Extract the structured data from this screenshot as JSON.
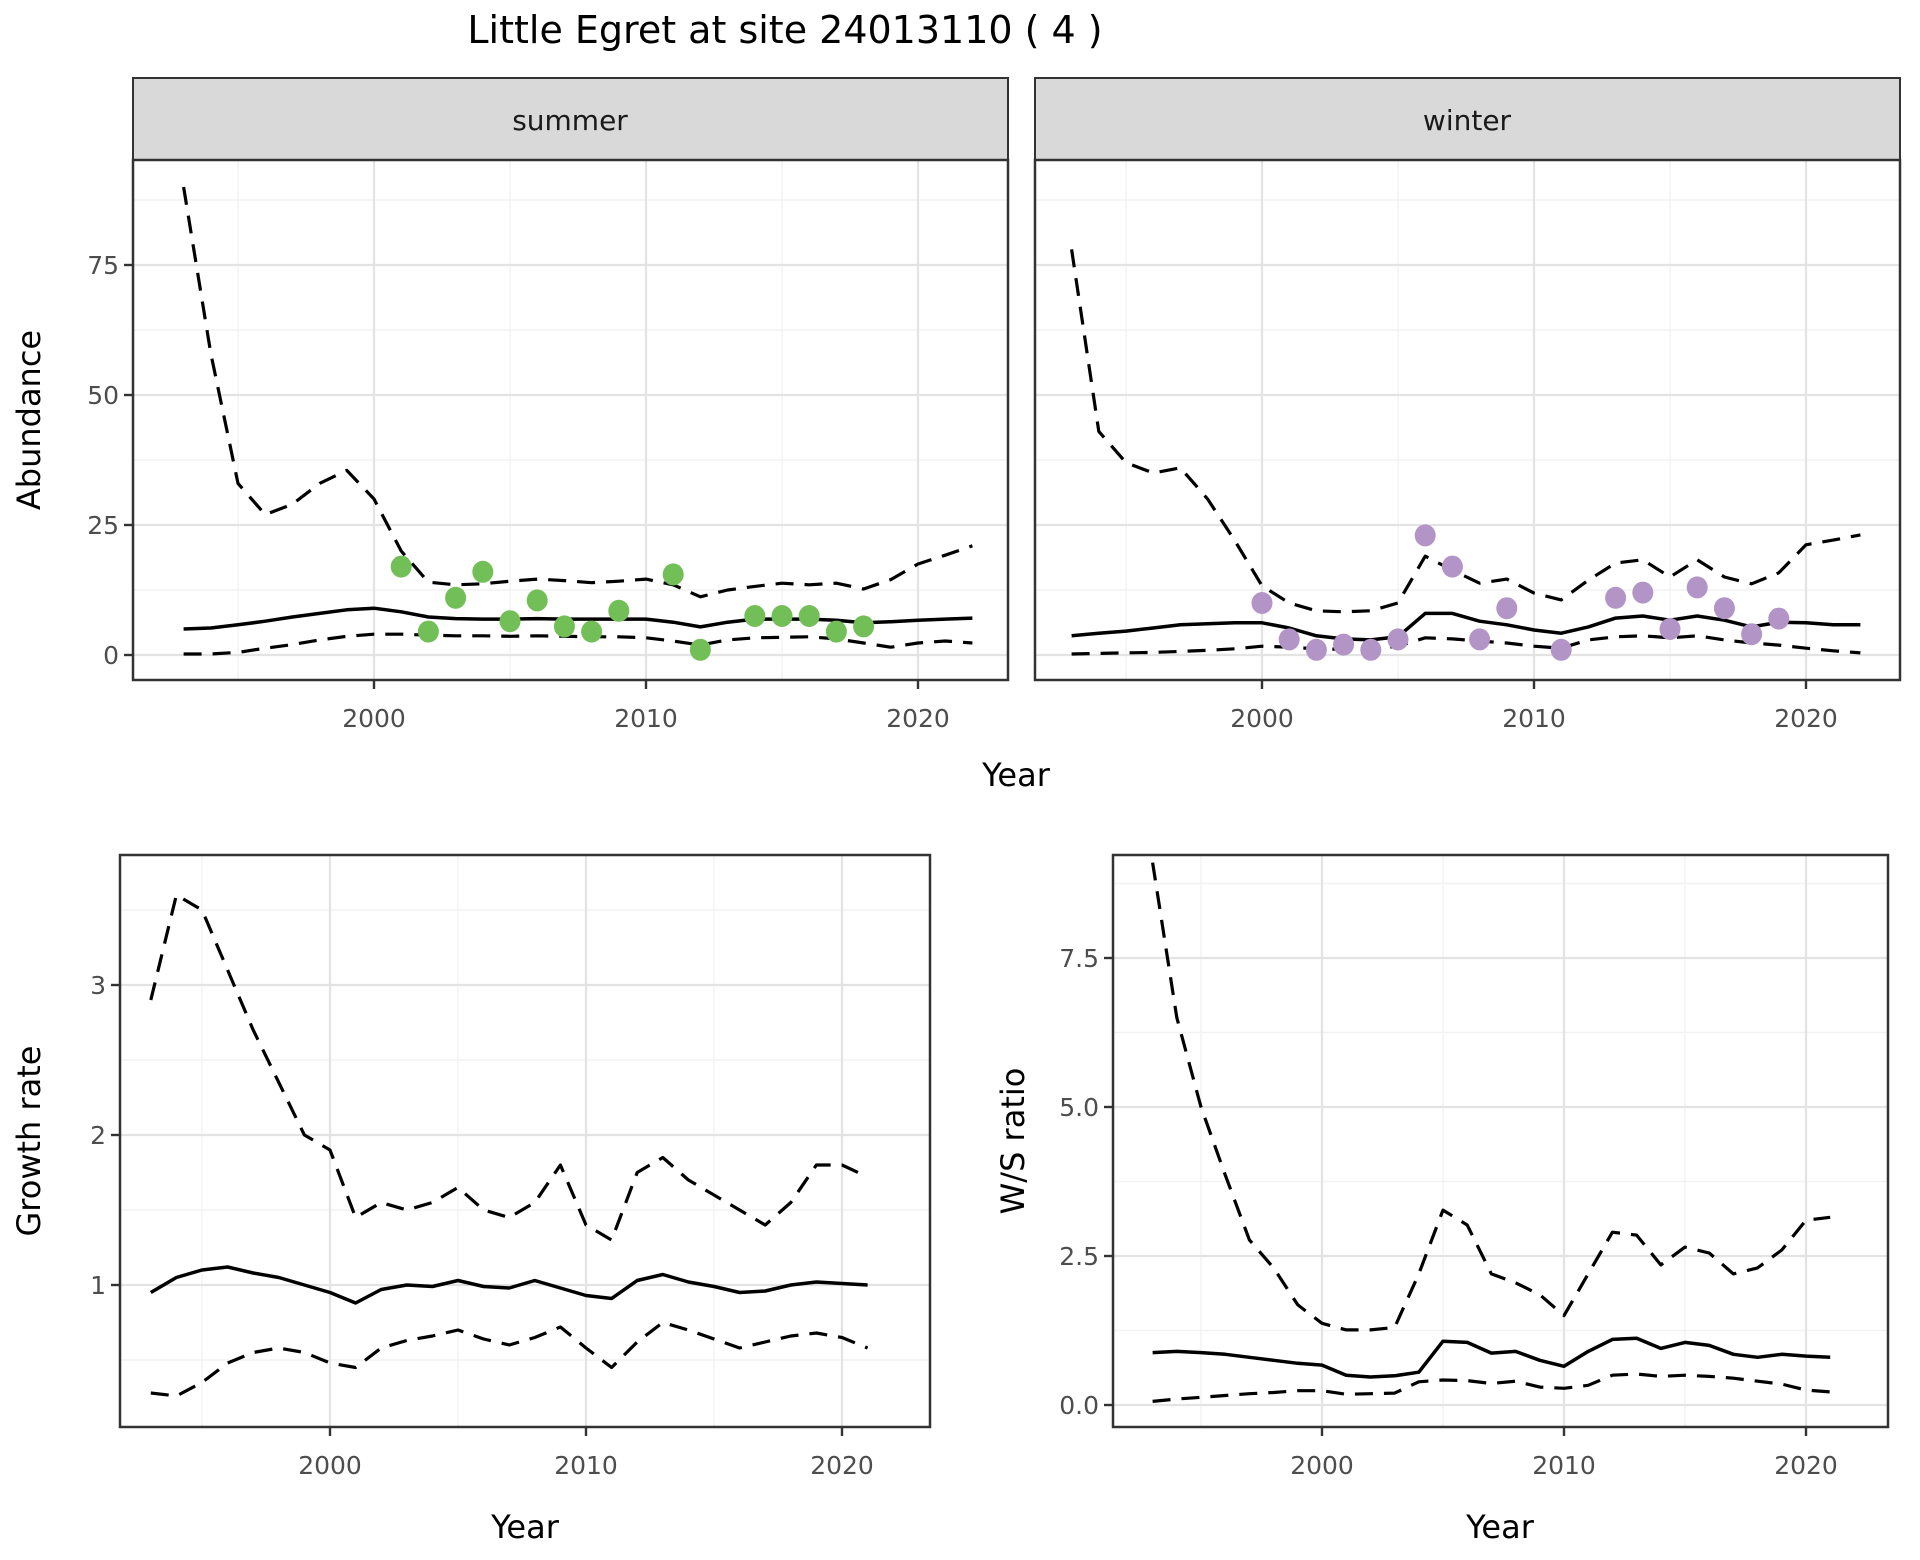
{
  "title": "Little Egret at site 24013110 ( 4 )",
  "labels": {
    "abundance": "Abundance",
    "year": "Year",
    "growth_rate": "Growth rate",
    "ws_ratio": "W/S ratio"
  },
  "colors": {
    "summer_points": "#73BF57",
    "winter_points": "#B294C7",
    "line": "#000000",
    "strip_fill": "#D9D9D9",
    "panel_border": "#333333",
    "tick_text": "#4D4D4D"
  },
  "chart_data": [
    {
      "id": "abundance-summer",
      "type": "line",
      "facet_label": "summer",
      "xlabel": "Year",
      "ylabel": "Abundance",
      "x_ticks": {
        "values": [
          2000,
          2010,
          2020
        ],
        "labels": [
          "2000",
          "2010",
          "2020"
        ]
      },
      "y_ticks": {
        "values": [
          0,
          25,
          50,
          75
        ],
        "labels": [
          "0",
          "25",
          "50",
          "75"
        ]
      },
      "xlim": [
        1991.1,
        2023.3
      ],
      "ylim": [
        -4.8,
        95.2
      ],
      "grid": true,
      "legend": "none",
      "years": [
        1993,
        1994,
        1995,
        1996,
        1997,
        1998,
        1999,
        2000,
        2001,
        2002,
        2003,
        2004,
        2005,
        2006,
        2007,
        2008,
        2009,
        2010,
        2011,
        2012,
        2013,
        2014,
        2015,
        2016,
        2017,
        2018,
        2019,
        2020,
        2021,
        2022
      ],
      "series": [
        {
          "name": "mean",
          "style": "solid",
          "values": [
            5.0,
            5.2,
            5.8,
            6.5,
            7.3,
            8.0,
            8.7,
            9.0,
            8.3,
            7.3,
            7.0,
            6.9,
            6.9,
            7.0,
            6.9,
            6.9,
            6.9,
            6.9,
            6.3,
            5.4,
            6.3,
            6.9,
            6.9,
            6.9,
            6.7,
            6.2,
            6.4,
            6.7,
            6.9,
            7.1
          ]
        },
        {
          "name": "upper_ci",
          "style": "dashed",
          "values": [
            90,
            58,
            33,
            27,
            29,
            33,
            35.5,
            30,
            20,
            14,
            13.5,
            13.7,
            14.2,
            14.6,
            14.3,
            13.9,
            14.2,
            14.6,
            13.5,
            11.2,
            12.5,
            13.2,
            13.8,
            13.5,
            13.8,
            12.7,
            14.5,
            17.5,
            19.2,
            21
          ]
        },
        {
          "name": "lower_ci",
          "style": "dashed",
          "values": [
            0.2,
            0.2,
            0.5,
            1.3,
            2.0,
            2.9,
            3.6,
            4.0,
            4.0,
            3.8,
            3.7,
            3.7,
            3.6,
            3.7,
            3.6,
            3.5,
            3.5,
            3.3,
            2.7,
            1.9,
            2.9,
            3.3,
            3.4,
            3.5,
            3.1,
            2.3,
            1.5,
            2.3,
            2.7,
            2.3
          ]
        }
      ],
      "observations": {
        "name": "summer observed counts",
        "color": "#73BF57",
        "points": [
          [
            2001,
            17
          ],
          [
            2002,
            4.5
          ],
          [
            2003,
            11
          ],
          [
            2004,
            16
          ],
          [
            2005,
            6.5
          ],
          [
            2006,
            10.5
          ],
          [
            2007,
            5.5
          ],
          [
            2008,
            4.5
          ],
          [
            2009,
            8.5
          ],
          [
            2011,
            15.5
          ],
          [
            2012,
            1
          ],
          [
            2014,
            7.5
          ],
          [
            2015,
            7.5
          ],
          [
            2016,
            7.5
          ],
          [
            2017,
            4.5
          ],
          [
            2018,
            5.5
          ]
        ]
      }
    },
    {
      "id": "abundance-winter",
      "type": "line",
      "facet_label": "winter",
      "xlabel": "Year",
      "ylabel": "Abundance",
      "x_ticks": {
        "values": [
          2000,
          2010,
          2020
        ],
        "labels": [
          "2000",
          "2010",
          "2020"
        ]
      },
      "y_ticks": {
        "values": [
          0,
          25,
          50,
          75
        ],
        "labels": [
          "0",
          "25",
          "50",
          "75"
        ]
      },
      "xlim": [
        1991.65,
        2023.5
      ],
      "ylim": [
        -4.8,
        95.2
      ],
      "grid": true,
      "legend": "none",
      "years": [
        1993,
        1994,
        1995,
        1996,
        1997,
        1998,
        1999,
        2000,
        2001,
        2002,
        2003,
        2004,
        2005,
        2006,
        2007,
        2008,
        2009,
        2010,
        2011,
        2012,
        2013,
        2014,
        2015,
        2016,
        2017,
        2018,
        2019,
        2020,
        2021,
        2022
      ],
      "series": [
        {
          "name": "mean",
          "style": "solid",
          "values": [
            3.7,
            4.2,
            4.6,
            5.2,
            5.8,
            6.0,
            6.2,
            6.2,
            5.2,
            3.7,
            3.1,
            2.9,
            3.5,
            8.0,
            8.0,
            6.5,
            5.8,
            4.8,
            4.2,
            5.4,
            7.1,
            7.5,
            6.7,
            7.5,
            6.7,
            5.4,
            6.3,
            6.2,
            5.8,
            5.8
          ]
        },
        {
          "name": "upper_ci",
          "style": "dashed",
          "values": [
            78,
            43,
            37,
            35,
            36,
            30,
            22,
            13.3,
            10,
            8.5,
            8.3,
            8.5,
            10,
            19,
            16.3,
            13.8,
            14.6,
            11.9,
            10.6,
            14.4,
            17.7,
            18.3,
            15,
            18.3,
            15,
            13.7,
            15.8,
            21.2,
            22.1,
            23.1
          ]
        },
        {
          "name": "lower_ci",
          "style": "dashed",
          "values": [
            0.2,
            0.3,
            0.4,
            0.5,
            0.7,
            0.9,
            1.2,
            1.7,
            1.5,
            1.2,
            1.1,
            1.1,
            1.7,
            3.3,
            3.1,
            2.7,
            2.3,
            1.7,
            1.3,
            2.9,
            3.5,
            3.7,
            3.3,
            3.7,
            2.9,
            2.3,
            1.9,
            1.3,
            0.8,
            0.4
          ]
        }
      ],
      "observations": {
        "name": "winter observed counts",
        "color": "#B294C7",
        "points": [
          [
            2000,
            10
          ],
          [
            2001,
            3
          ],
          [
            2002,
            1
          ],
          [
            2003,
            2
          ],
          [
            2004,
            1
          ],
          [
            2005,
            3
          ],
          [
            2006,
            23
          ],
          [
            2007,
            17
          ],
          [
            2008,
            3
          ],
          [
            2009,
            9
          ],
          [
            2011,
            1
          ],
          [
            2013,
            11
          ],
          [
            2014,
            12
          ],
          [
            2015,
            5
          ],
          [
            2016,
            13
          ],
          [
            2017,
            9
          ],
          [
            2018,
            4
          ],
          [
            2019,
            7
          ]
        ]
      }
    },
    {
      "id": "growth-rate",
      "type": "line",
      "facet_label": null,
      "xlabel": "Year",
      "ylabel": "Growth rate",
      "x_ticks": {
        "values": [
          2000,
          2010,
          2020
        ],
        "labels": [
          "2000",
          "2010",
          "2020"
        ]
      },
      "y_ticks": {
        "values": [
          1,
          2,
          3
        ],
        "labels": [
          "1",
          "2",
          "3"
        ]
      },
      "xlim": [
        1991.8,
        2023.4
      ],
      "ylim": [
        0.05,
        3.87
      ],
      "grid": true,
      "legend": "none",
      "years": [
        1993,
        1994,
        1995,
        1996,
        1997,
        1998,
        1999,
        2000,
        2001,
        2002,
        2003,
        2004,
        2005,
        2006,
        2007,
        2008,
        2009,
        2010,
        2011,
        2012,
        2013,
        2014,
        2015,
        2016,
        2017,
        2018,
        2019,
        2020,
        2021
      ],
      "series": [
        {
          "name": "mean",
          "style": "solid",
          "values": [
            0.95,
            1.05,
            1.1,
            1.12,
            1.08,
            1.05,
            1.0,
            0.95,
            0.88,
            0.97,
            1.0,
            0.99,
            1.03,
            0.99,
            0.98,
            1.03,
            0.98,
            0.93,
            0.91,
            1.03,
            1.07,
            1.02,
            0.99,
            0.95,
            0.96,
            1.0,
            1.02,
            1.01,
            1.0
          ]
        },
        {
          "name": "upper_ci",
          "style": "dashed",
          "values": [
            2.9,
            3.6,
            3.5,
            3.1,
            2.7,
            2.35,
            2.0,
            1.9,
            1.45,
            1.55,
            1.5,
            1.55,
            1.65,
            1.5,
            1.45,
            1.55,
            1.8,
            1.4,
            1.3,
            1.75,
            1.85,
            1.7,
            1.6,
            1.5,
            1.4,
            1.55,
            1.8,
            1.8,
            1.72
          ]
        },
        {
          "name": "lower_ci",
          "style": "dashed",
          "values": [
            0.28,
            0.26,
            0.35,
            0.48,
            0.55,
            0.58,
            0.55,
            0.48,
            0.45,
            0.58,
            0.63,
            0.66,
            0.7,
            0.64,
            0.6,
            0.65,
            0.72,
            0.58,
            0.45,
            0.62,
            0.75,
            0.7,
            0.64,
            0.58,
            0.62,
            0.66,
            0.68,
            0.65,
            0.58
          ]
        }
      ],
      "observations": null
    },
    {
      "id": "ws-ratio",
      "type": "line",
      "facet_label": null,
      "xlabel": "Year",
      "ylabel": "W/S ratio",
      "x_ticks": {
        "values": [
          2000,
          2010,
          2020
        ],
        "labels": [
          "2000",
          "2010",
          "2020"
        ]
      },
      "y_ticks": {
        "values": [
          0,
          2.5,
          5,
          7.5
        ],
        "labels": [
          "0.0",
          "2.5",
          "5.0",
          "7.5"
        ]
      },
      "xlim": [
        1991.4,
        2023.4
      ],
      "ylim": [
        -0.37,
        9.23
      ],
      "grid": true,
      "legend": "none",
      "years": [
        1993,
        1994,
        1995,
        1996,
        1997,
        1998,
        1999,
        2000,
        2001,
        2002,
        2003,
        2004,
        2005,
        2006,
        2007,
        2008,
        2009,
        2010,
        2011,
        2012,
        2013,
        2014,
        2015,
        2016,
        2017,
        2018,
        2019,
        2020,
        2021
      ],
      "series": [
        {
          "name": "mean",
          "style": "solid",
          "values": [
            0.88,
            0.9,
            0.88,
            0.85,
            0.8,
            0.75,
            0.7,
            0.67,
            0.5,
            0.47,
            0.49,
            0.55,
            1.07,
            1.05,
            0.87,
            0.9,
            0.75,
            0.65,
            0.9,
            1.1,
            1.12,
            0.95,
            1.05,
            1.0,
            0.85,
            0.8,
            0.85,
            0.82,
            0.8
          ]
        },
        {
          "name": "upper_ci",
          "style": "dashed",
          "values": [
            9.1,
            6.5,
            5.0,
            3.86,
            2.77,
            2.3,
            1.68,
            1.37,
            1.26,
            1.26,
            1.3,
            2.2,
            3.27,
            3.02,
            2.2,
            2.05,
            1.85,
            1.5,
            2.2,
            2.9,
            2.85,
            2.35,
            2.65,
            2.55,
            2.2,
            2.3,
            2.6,
            3.1,
            3.15
          ]
        },
        {
          "name": "lower_ci",
          "style": "dashed",
          "values": [
            0.06,
            0.1,
            0.13,
            0.16,
            0.19,
            0.21,
            0.24,
            0.24,
            0.18,
            0.19,
            0.2,
            0.39,
            0.42,
            0.41,
            0.36,
            0.4,
            0.3,
            0.28,
            0.33,
            0.5,
            0.52,
            0.48,
            0.5,
            0.48,
            0.45,
            0.4,
            0.35,
            0.25,
            0.22
          ]
        }
      ],
      "observations": null
    }
  ]
}
